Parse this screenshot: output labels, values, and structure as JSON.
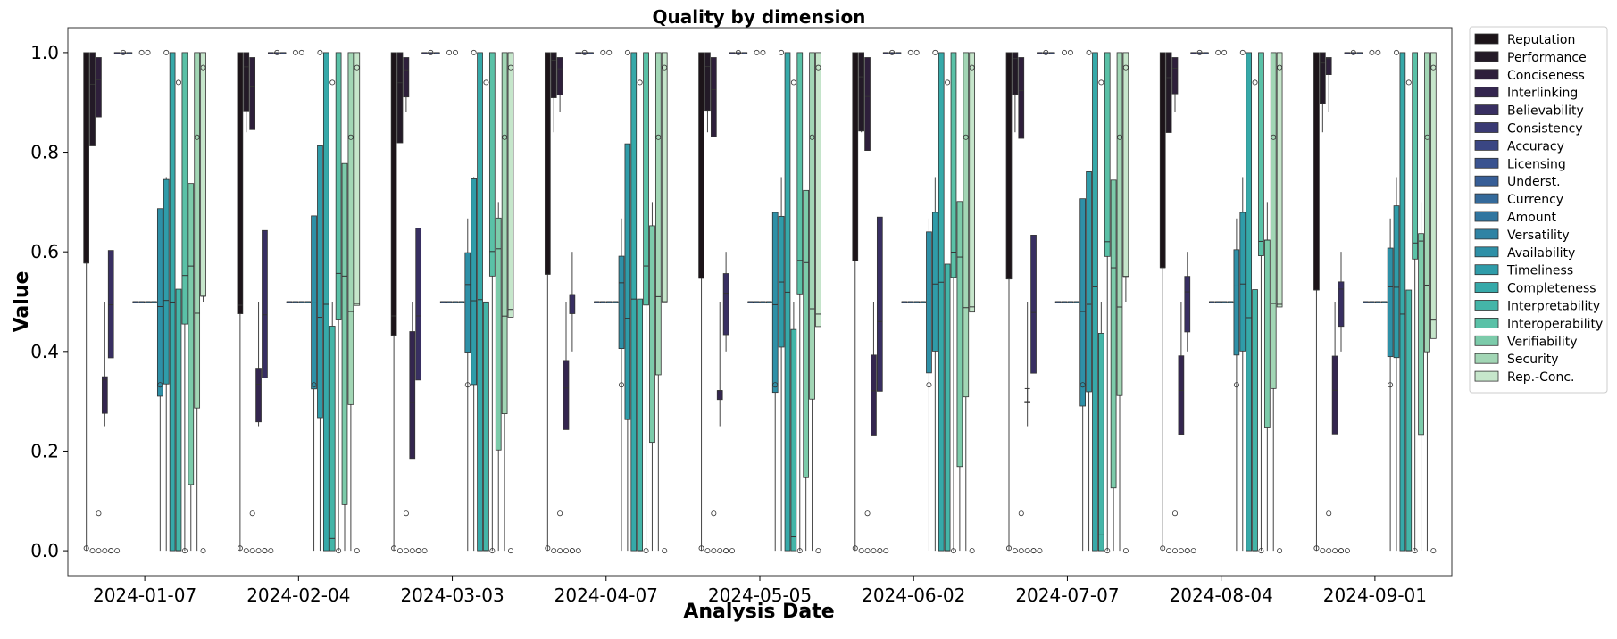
{
  "chart_data": {
    "type": "box",
    "title": "Quality by dimension",
    "xlabel": "Analysis Date",
    "ylabel": "Value",
    "ylim": [
      -0.05,
      1.05
    ],
    "yticks": [
      "0.0",
      "0.2",
      "0.4",
      "0.6",
      "0.8",
      "1.0"
    ],
    "grid": false,
    "legend_position": "outside-right",
    "categories": [
      "2024-01-07",
      "2024-02-04",
      "2024-03-03",
      "2024-04-07",
      "2024-05-05",
      "2024-06-02",
      "2024-07-07",
      "2024-08-04",
      "2024-09-01"
    ],
    "series": [
      {
        "name": "Reputation",
        "color": "#1c1419"
      },
      {
        "name": "Performance",
        "color": "#231a27"
      },
      {
        "name": "Conciseness",
        "color": "#2e1f3b"
      },
      {
        "name": "Interlinking",
        "color": "#34264f"
      },
      {
        "name": "Believability",
        "color": "#382f62"
      },
      {
        "name": "Consistency",
        "color": "#3a3a74"
      },
      {
        "name": "Accuracy",
        "color": "#3a4683"
      },
      {
        "name": "Licensing",
        "color": "#3a5390"
      },
      {
        "name": "Underst.",
        "color": "#375e97"
      },
      {
        "name": "Currency",
        "color": "#346a9b"
      },
      {
        "name": "Amount",
        "color": "#3176a0"
      },
      {
        "name": "Versatility",
        "color": "#2f83a4"
      },
      {
        "name": "Availability",
        "color": "#2e90a7"
      },
      {
        "name": "Timeliness",
        "color": "#2f9ca9"
      },
      {
        "name": "Completeness",
        "color": "#36a9a9"
      },
      {
        "name": "Interpretability",
        "color": "#44b5a8"
      },
      {
        "name": "Interoperability",
        "color": "#5ac1a7"
      },
      {
        "name": "Verifiability",
        "color": "#7ccbaa"
      },
      {
        "name": "Security",
        "color": "#a2d6b5"
      },
      {
        "name": "Rep.-Conc.",
        "color": "#c6e6cb"
      }
    ],
    "base_boxes": [
      {
        "q1": 0.51,
        "med": 0.51,
        "q3": 1.0,
        "lo": 0.0,
        "hi": 1.0,
        "out": [
          0.005
        ]
      },
      {
        "q1": 0.84,
        "med": 0.95,
        "q3": 1.0,
        "lo": 0.84,
        "hi": 1.0,
        "out": [
          0.0
        ]
      },
      {
        "q1": 0.88,
        "med": 0.95,
        "q3": 0.99,
        "lo": 0.88,
        "hi": 0.99,
        "out": [
          0.075,
          0.0
        ]
      },
      {
        "q1": 0.25,
        "med": 0.33,
        "q3": 0.375,
        "lo": 0.25,
        "hi": 0.5,
        "out": [
          0.0
        ]
      },
      {
        "q1": 0.4,
        "med": 0.5,
        "q3": 0.59,
        "lo": 0.4,
        "hi": 0.6,
        "out": [
          0.0,
          0.0
        ]
      },
      {
        "q1": 1.0,
        "med": 1.0,
        "q3": 1.0,
        "lo": 1.0,
        "hi": 1.0,
        "out": [
          0.0
        ]
      },
      {
        "q1": 1.0,
        "med": 1.0,
        "q3": 1.0,
        "lo": 1.0,
        "hi": 1.0,
        "out": [
          1.0
        ]
      },
      {
        "q1": 1.0,
        "med": 1.0,
        "q3": 1.0,
        "lo": 1.0,
        "hi": 1.0,
        "out": []
      },
      {
        "q1": 0.5,
        "med": 0.5,
        "q3": 0.5,
        "lo": 0.5,
        "hi": 0.5,
        "out": []
      },
      {
        "q1": 0.5,
        "med": 0.5,
        "q3": 0.5,
        "lo": 0.5,
        "hi": 0.5,
        "out": [
          1.0
        ]
      },
      {
        "q1": 0.5,
        "med": 0.5,
        "q3": 0.5,
        "lo": 0.5,
        "hi": 0.5,
        "out": [
          1.0
        ]
      },
      {
        "q1": 0.5,
        "med": 0.5,
        "q3": 0.5,
        "lo": 0.5,
        "hi": 0.5,
        "out": []
      },
      {
        "q1": 0.33,
        "med": 0.5,
        "q3": 0.667,
        "lo": 0.0,
        "hi": 0.667,
        "out": [
          0.333
        ]
      },
      {
        "q1": 0.33,
        "med": 0.5,
        "q3": 0.75,
        "lo": 0.0,
        "hi": 0.75,
        "out": [
          1.0
        ]
      },
      {
        "q1": 0.0,
        "med": 0.5,
        "q3": 1.0,
        "lo": 0.0,
        "hi": 1.0,
        "out": []
      },
      {
        "q1": 0.0,
        "med": 0.0,
        "q3": 0.5,
        "lo": 0.0,
        "hi": 0.5,
        "out": [
          0.94
        ]
      },
      {
        "q1": 0.53,
        "med": 0.59,
        "q3": 1.0,
        "lo": 0.0,
        "hi": 1.0,
        "out": [
          0.0
        ]
      },
      {
        "q1": 0.17,
        "med": 0.59,
        "q3": 0.7,
        "lo": 0.0,
        "hi": 0.7,
        "out": []
      },
      {
        "q1": 0.333,
        "med": 0.5,
        "q3": 1.0,
        "lo": 0.0,
        "hi": 1.0,
        "out": [
          0.83
        ]
      },
      {
        "q1": 0.5,
        "med": 0.5,
        "q3": 1.0,
        "lo": 0.5,
        "hi": 1.0,
        "out": [
          0.97,
          0.0
        ]
      }
    ]
  }
}
